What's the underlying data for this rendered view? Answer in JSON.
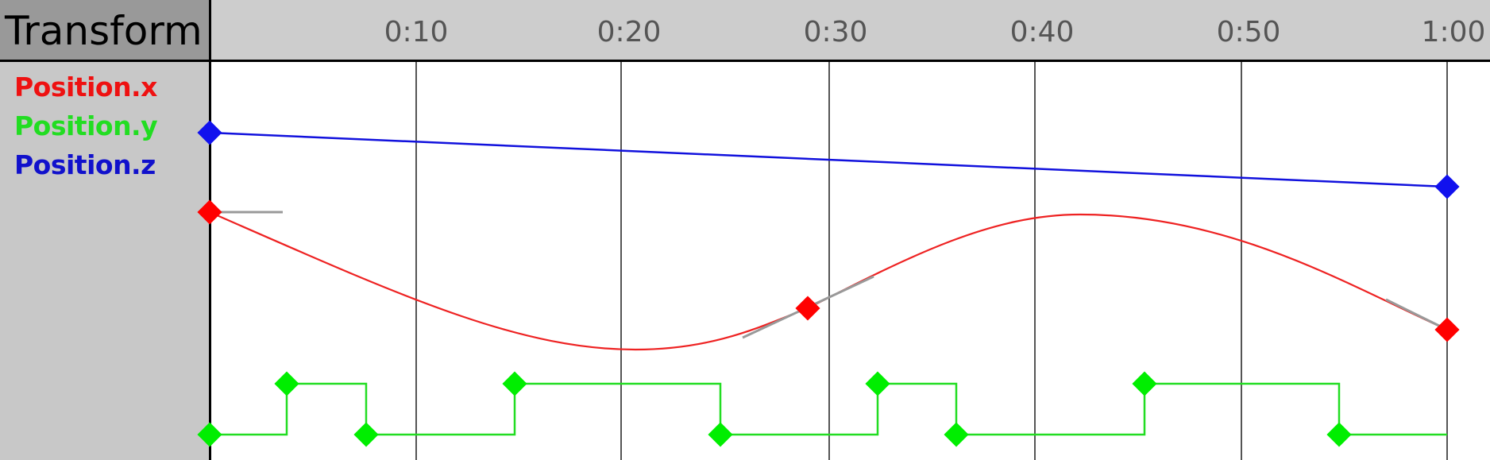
{
  "panel": {
    "title": "Transform",
    "channels": [
      {
        "label": "Position.x",
        "color": "#ee1111"
      },
      {
        "label": "Position.y",
        "color": "#22dd22"
      },
      {
        "label": "Position.z",
        "color": "#1111cc"
      }
    ]
  },
  "ruler": {
    "ticks": [
      "0:10",
      "0:20",
      "0:30",
      "0:40",
      "0:50",
      "1:00"
    ]
  },
  "curves": {
    "position_x": {
      "interpolation": "bezier",
      "keyframes_time_s": [
        0,
        29,
        60
      ]
    },
    "position_y": {
      "interpolation": "stepped",
      "keyframes_time_s": [
        0,
        3.8,
        7.6,
        14.9,
        24.8,
        32.4,
        36.1,
        45.2,
        54.6
      ]
    },
    "position_z": {
      "interpolation": "linear",
      "keyframes_time_s": [
        0,
        60
      ]
    }
  }
}
